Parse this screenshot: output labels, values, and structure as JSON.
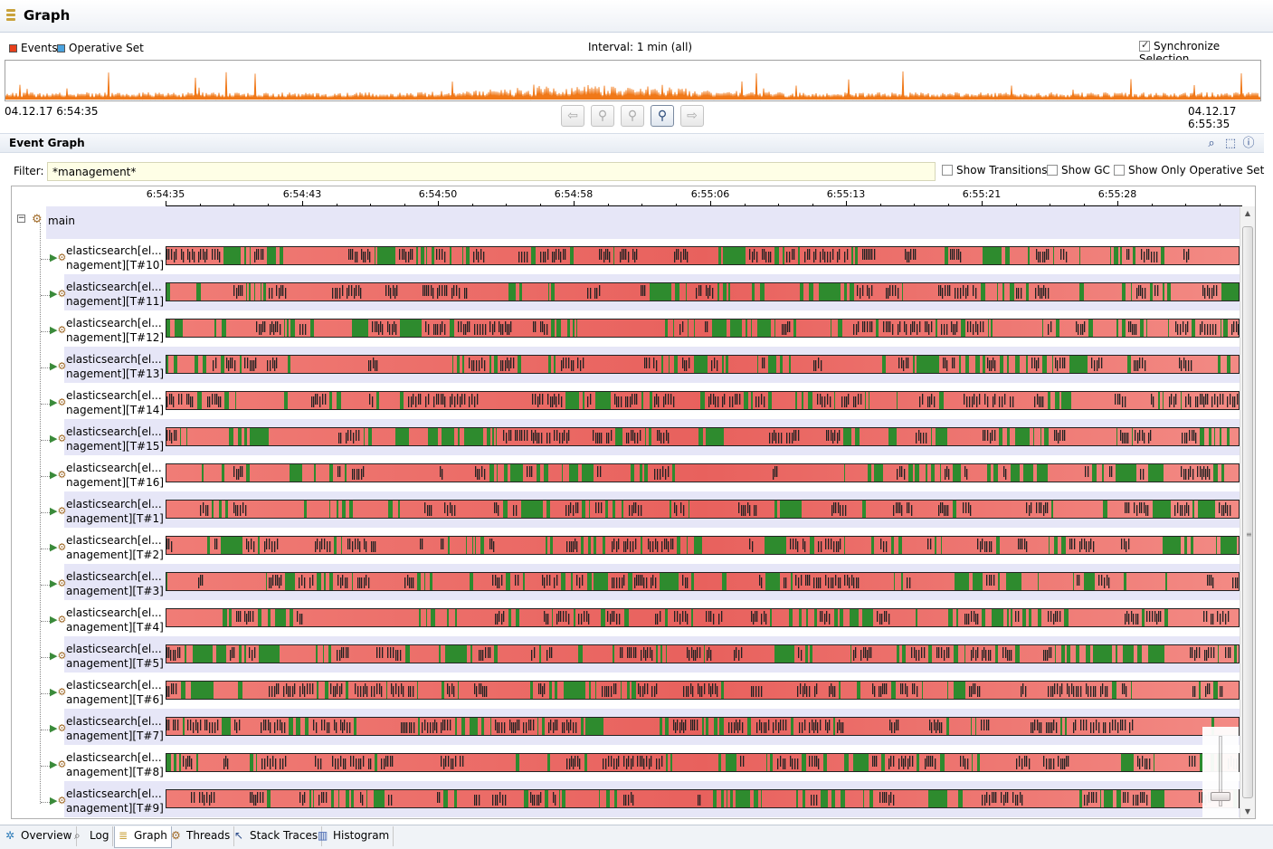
{
  "header": {
    "title": "Graph",
    "icon": "graph-icon"
  },
  "legend": {
    "events_label": "Events",
    "events_color": "#e8401c",
    "operative_label": "Operative Set",
    "operative_color": "#4aa3df"
  },
  "interval_label": "Interval: 1 min (all)",
  "synchronize_label": "Synchronize Selection",
  "synchronize_checked": true,
  "overview": {
    "start": "04.12.17 6:54:35",
    "end": "04.12.17 6:55:35",
    "color": "#f07818"
  },
  "nav_buttons": [
    {
      "name": "back-button",
      "glyph": "⇦"
    },
    {
      "name": "zoom-out-button",
      "glyph": "⚲"
    },
    {
      "name": "zoom-in-button",
      "glyph": "⚲"
    },
    {
      "name": "zoom-selection-button",
      "glyph": "⚲"
    },
    {
      "name": "forward-button",
      "glyph": "⇨"
    }
  ],
  "event_graph": {
    "title": "Event Graph",
    "filter_label": "Filter:",
    "filter_value": "*management*",
    "show_transitions": "Show Transitions",
    "show_gc": "Show GC",
    "show_only_operative": "Show Only Operative Set"
  },
  "axis_ticks": [
    "6:54:35",
    "6:54:43",
    "6:54:50",
    "6:54:58",
    "6:55:06",
    "6:55:13",
    "6:55:21",
    "6:55:28"
  ],
  "tree": {
    "root": "main",
    "threads": [
      {
        "line1": "elasticsearch[el...",
        "line2": "nagement][T#10]"
      },
      {
        "line1": "elasticsearch[el...",
        "line2": "nagement][T#11]"
      },
      {
        "line1": "elasticsearch[el...",
        "line2": "nagement][T#12]"
      },
      {
        "line1": "elasticsearch[el...",
        "line2": "nagement][T#13]"
      },
      {
        "line1": "elasticsearch[el...",
        "line2": "nagement][T#14]"
      },
      {
        "line1": "elasticsearch[el...",
        "line2": "nagement][T#15]"
      },
      {
        "line1": "elasticsearch[el...",
        "line2": "nagement][T#16]"
      },
      {
        "line1": "elasticsearch[el...",
        "line2": "anagement][T#1]"
      },
      {
        "line1": "elasticsearch[el...",
        "line2": "anagement][T#2]"
      },
      {
        "line1": "elasticsearch[el...",
        "line2": "anagement][T#3]"
      },
      {
        "line1": "elasticsearch[el...",
        "line2": "anagement][T#4]"
      },
      {
        "line1": "elasticsearch[el...",
        "line2": "anagement][T#5]"
      },
      {
        "line1": "elasticsearch[el...",
        "line2": "anagement][T#6]"
      },
      {
        "line1": "elasticsearch[el...",
        "line2": "anagement][T#7]"
      },
      {
        "line1": "elasticsearch[el...",
        "line2": "anagement][T#8]"
      },
      {
        "line1": "elasticsearch[el...",
        "line2": "anagement][T#9]"
      }
    ]
  },
  "bar_colors": {
    "waiting": "#e8615d",
    "running": "#2e8b2e",
    "event": "#222222"
  },
  "tabs": [
    {
      "label": "Overview",
      "icon": "overview-icon",
      "selected": false
    },
    {
      "label": "Log",
      "icon": "log-icon",
      "selected": false
    },
    {
      "label": "Graph",
      "icon": "graph-icon",
      "selected": true
    },
    {
      "label": "Threads",
      "icon": "threads-icon",
      "selected": false
    },
    {
      "label": "Stack Traces",
      "icon": "stack-traces-icon",
      "selected": false
    },
    {
      "label": "Histogram",
      "icon": "histogram-icon",
      "selected": false
    }
  ]
}
